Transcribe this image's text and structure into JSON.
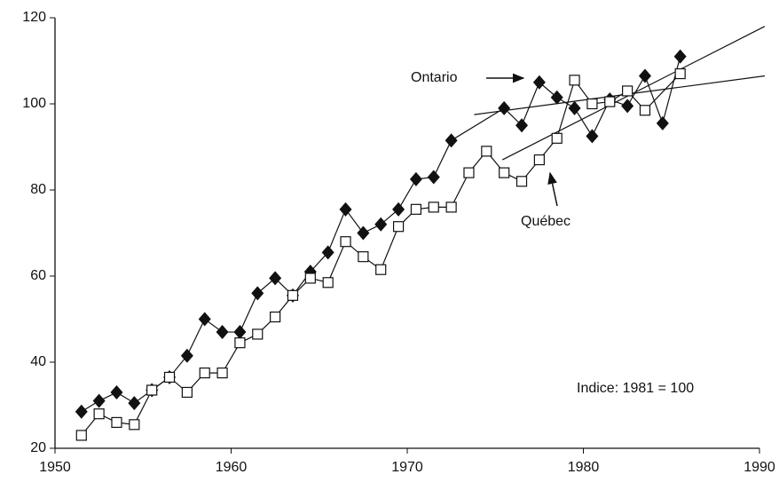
{
  "chart_data": {
    "type": "line",
    "annotations": [
      "Indice: 1981 = 100"
    ],
    "xlim": [
      1950,
      1990
    ],
    "xticks": [
      1950,
      1960,
      1970,
      1980,
      1990
    ],
    "ylim": [
      20,
      120
    ],
    "yticks": [
      20,
      40,
      60,
      80,
      100,
      120
    ],
    "series": [
      {
        "name": "Ontario",
        "color": "#111111",
        "marker": "diamond",
        "x": [
          1951.5,
          1952.5,
          1953.5,
          1954.5,
          1955.5,
          1956.5,
          1957.5,
          1958.5,
          1959.5,
          1960.5,
          1961.5,
          1962.5,
          1963.5,
          1964.5,
          1965.5,
          1966.5,
          1967.5,
          1968.5,
          1969.5,
          1970.5,
          1971.5,
          1972.5,
          1975.5,
          1976.5,
          1977.5,
          1978.5,
          1979.5,
          1980.5,
          1981.5,
          1982.5,
          1983.5,
          1984.5,
          1985.5
        ],
        "values": [
          28.5,
          31,
          33,
          30.5,
          33.5,
          36.5,
          41.5,
          50,
          47,
          47,
          56,
          59.5,
          55.5,
          61,
          65.5,
          75.5,
          70,
          72,
          75.5,
          82.5,
          83,
          91.5,
          99,
          95,
          105,
          101.5,
          99,
          92.5,
          101,
          99.5,
          106.5,
          95.5,
          111
        ]
      },
      {
        "name": "Québec",
        "color": "#111111",
        "marker": "square",
        "x": [
          1951.5,
          1952.5,
          1953.5,
          1954.5,
          1955.5,
          1956.5,
          1957.5,
          1958.5,
          1959.5,
          1960.5,
          1961.5,
          1962.5,
          1963.5,
          1964.5,
          1965.5,
          1966.5,
          1967.5,
          1968.5,
          1969.5,
          1970.5,
          1971.5,
          1972.5,
          1973.5,
          1974.5,
          1975.5,
          1976.5,
          1977.5,
          1978.5,
          1979.5,
          1980.5,
          1981.5,
          1982.5,
          1983.5,
          1985.5
        ],
        "values": [
          23,
          28,
          26,
          25.5,
          33.5,
          36.5,
          33,
          37.5,
          37.5,
          44.5,
          46.5,
          50.5,
          55.5,
          59.5,
          58.5,
          68,
          64.5,
          61.5,
          71.5,
          75.5,
          76,
          76,
          84,
          89,
          84,
          82,
          87,
          92,
          105.5,
          100,
          100.5,
          103,
          98.5,
          107
        ]
      }
    ],
    "trend_lines": [
      {
        "x": [
          1973.8,
          1990.3
        ],
        "values": [
          97.5,
          106.5
        ]
      },
      {
        "x": [
          1975.4,
          1990.3
        ],
        "values": [
          87,
          118
        ]
      }
    ]
  }
}
